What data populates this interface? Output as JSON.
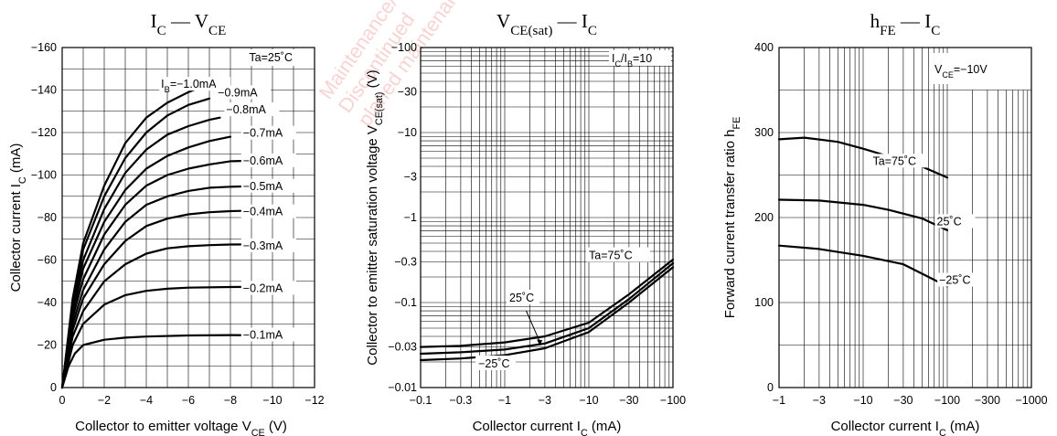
{
  "watermark": {
    "lines": [
      "Maintenance/",
      "Discontinued",
      "planed maintenance"
    ],
    "color": "#e06060"
  },
  "chart_data": [
    {
      "type": "line",
      "title": "I_C — V_CE",
      "title_html": [
        "I",
        "C",
        " — V",
        "CE"
      ],
      "xlabel": "Collector to emitter voltage  V_CE  (V)",
      "xlabel_parts": [
        "Collector to emitter voltage  V",
        "CE",
        "  (V)"
      ],
      "ylabel_parts": [
        "Collector current   I",
        "C",
        "  (mA)"
      ],
      "xlim": [
        0,
        -12
      ],
      "ylim": [
        0,
        -160
      ],
      "x_ticks": [
        "0",
        "−2",
        "−4",
        "−6",
        "−8",
        "−10",
        "−12"
      ],
      "y_ticks": [
        "0",
        "−20",
        "−40",
        "−60",
        "−80",
        "−100",
        "−120",
        "−140",
        "−160"
      ],
      "grid": true,
      "annotations": [
        "Ta=25˚C"
      ],
      "series": [
        {
          "name": "I_B=−1.0mA",
          "label": "I",
          "label_sub": "B",
          "label_rest": "=−1.0mA",
          "points": [
            [
              0,
              0
            ],
            [
              -0.5,
              -42
            ],
            [
              -1,
              -68
            ],
            [
              -2,
              -95
            ],
            [
              -3,
              -115
            ],
            [
              -4,
              -127
            ],
            [
              -5,
              -134
            ],
            [
              -6,
              -139
            ],
            [
              -6.5,
              -141
            ]
          ]
        },
        {
          "name": "−0.9mA",
          "label": "−0.9mA",
          "points": [
            [
              0,
              0
            ],
            [
              -0.5,
              -40
            ],
            [
              -1,
              -65
            ],
            [
              -2,
              -90
            ],
            [
              -3,
              -108
            ],
            [
              -4,
              -120
            ],
            [
              -5,
              -128
            ],
            [
              -6,
              -133
            ],
            [
              -7,
              -136
            ]
          ]
        },
        {
          "name": "−0.8mA",
          "label": "−0.8mA",
          "points": [
            [
              0,
              0
            ],
            [
              -0.5,
              -38
            ],
            [
              -1,
              -60
            ],
            [
              -2,
              -84
            ],
            [
              -3,
              -101
            ],
            [
              -4,
              -112
            ],
            [
              -5,
              -119
            ],
            [
              -6,
              -123
            ],
            [
              -7,
              -126
            ],
            [
              -7.5,
              -127
            ]
          ]
        },
        {
          "name": "−0.7mA",
          "label": "−0.7mA",
          "points": [
            [
              0,
              0
            ],
            [
              -0.5,
              -35
            ],
            [
              -1,
              -56
            ],
            [
              -2,
              -78
            ],
            [
              -3,
              -93
            ],
            [
              -4,
              -103
            ],
            [
              -5,
              -109
            ],
            [
              -6,
              -113
            ],
            [
              -7,
              -116
            ],
            [
              -8,
              -118
            ]
          ]
        },
        {
          "name": "−0.6mA",
          "label": "−0.6mA",
          "points": [
            [
              0,
              0
            ],
            [
              -0.5,
              -33
            ],
            [
              -1,
              -51
            ],
            [
              -2,
              -72
            ],
            [
              -3,
              -86
            ],
            [
              -4,
              -95
            ],
            [
              -5,
              -100
            ],
            [
              -6,
              -103
            ],
            [
              -7,
              -105
            ],
            [
              -8,
              -106.5
            ],
            [
              -10,
              -107
            ]
          ]
        },
        {
          "name": "−0.5mA",
          "label": "−0.5mA",
          "points": [
            [
              0,
              0
            ],
            [
              -0.5,
              -30
            ],
            [
              -1,
              -46
            ],
            [
              -2,
              -65
            ],
            [
              -3,
              -78
            ],
            [
              -4,
              -86
            ],
            [
              -5,
              -90
            ],
            [
              -6,
              -92.5
            ],
            [
              -7,
              -94
            ],
            [
              -8,
              -94.5
            ],
            [
              -10,
              -95
            ]
          ]
        },
        {
          "name": "−0.4mA",
          "label": "−0.4mA",
          "points": [
            [
              0,
              0
            ],
            [
              -0.5,
              -27
            ],
            [
              -1,
              -42
            ],
            [
              -2,
              -58
            ],
            [
              -3,
              -69
            ],
            [
              -4,
              -76
            ],
            [
              -5,
              -79.5
            ],
            [
              -6,
              -81.5
            ],
            [
              -7,
              -82.5
            ],
            [
              -8,
              -83
            ],
            [
              -10,
              -83.5
            ]
          ]
        },
        {
          "name": "−0.3mA",
          "label": "−0.3mA",
          "points": [
            [
              0,
              0
            ],
            [
              -0.5,
              -24
            ],
            [
              -1,
              -36
            ],
            [
              -2,
              -50
            ],
            [
              -3,
              -58
            ],
            [
              -4,
              -63
            ],
            [
              -5,
              -65.5
            ],
            [
              -6,
              -66.5
            ],
            [
              -7,
              -67
            ],
            [
              -8,
              -67.3
            ],
            [
              -10,
              -67.5
            ]
          ]
        },
        {
          "name": "−0.2mA",
          "label": "−0.2mA",
          "points": [
            [
              0,
              0
            ],
            [
              -0.5,
              -20
            ],
            [
              -1,
              -30
            ],
            [
              -2,
              -39
            ],
            [
              -3,
              -43.5
            ],
            [
              -4,
              -45.5
            ],
            [
              -5,
              -46.5
            ],
            [
              -6,
              -47
            ],
            [
              -8,
              -47.3
            ],
            [
              -10,
              -47.5
            ]
          ]
        },
        {
          "name": "−0.1mA",
          "label": "−0.1mA",
          "points": [
            [
              0,
              0
            ],
            [
              -0.3,
              -10
            ],
            [
              -0.6,
              -16
            ],
            [
              -1,
              -20
            ],
            [
              -2,
              -22.5
            ],
            [
              -3,
              -23.5
            ],
            [
              -4,
              -24
            ],
            [
              -6,
              -24.5
            ],
            [
              -8,
              -24.7
            ],
            [
              -10,
              -24.5
            ]
          ]
        }
      ]
    },
    {
      "type": "line",
      "title": "V_CE(sat) — I_C",
      "title_html": [
        "V",
        "CE(sat)",
        " — I",
        "C"
      ],
      "xlabel": "Collector current   I_C   (mA)",
      "xlabel_parts": [
        "Collector current   I",
        "C",
        "   (mA)"
      ],
      "ylabel_parts": [
        "Collector to emitter saturation voltage   V",
        "CE(sat)",
        "   (V)"
      ],
      "x_scale": "log",
      "y_scale": "log",
      "xlim": [
        -0.1,
        -100
      ],
      "ylim": [
        -0.01,
        -100
      ],
      "x_ticks": [
        "−0.1",
        "−0.3",
        "−1",
        "−3",
        "−10",
        "−30",
        "−100"
      ],
      "y_ticks": [
        "−0.01",
        "−0.03",
        "−0.1",
        "−0.3",
        "−1",
        "−3",
        "−10",
        "−30",
        "−100"
      ],
      "grid": true,
      "annotations": [
        "I_C/I_B=10"
      ],
      "annotation_parts": [
        "I",
        "C",
        "/I",
        "B",
        "=10"
      ],
      "series": [
        {
          "name": "Ta=75˚C",
          "label": "Ta=75˚C",
          "points": [
            [
              -0.1,
              -0.021
            ],
            [
              -0.3,
              -0.022
            ],
            [
              -1,
              -0.024
            ],
            [
              -3,
              -0.029
            ],
            [
              -10,
              -0.045
            ],
            [
              -30,
              -0.1
            ],
            [
              -100,
              -0.26
            ]
          ]
        },
        {
          "name": "25˚C",
          "label": "25˚C",
          "points": [
            [
              -0.1,
              -0.025
            ],
            [
              -0.3,
              -0.026
            ],
            [
              -1,
              -0.028
            ],
            [
              -3,
              -0.033
            ],
            [
              -10,
              -0.05
            ],
            [
              -30,
              -0.11
            ],
            [
              -100,
              -0.29
            ]
          ]
        },
        {
          "name": "−25˚C",
          "label": "−25˚C",
          "points": [
            [
              -0.1,
              -0.03
            ],
            [
              -0.3,
              -0.031
            ],
            [
              -1,
              -0.034
            ],
            [
              -3,
              -0.04
            ],
            [
              -10,
              -0.058
            ],
            [
              -30,
              -0.125
            ],
            [
              -100,
              -0.32
            ]
          ]
        }
      ]
    },
    {
      "type": "line",
      "title": "h_FE — I_C",
      "title_html": [
        "h",
        "FE",
        " — I",
        "C"
      ],
      "xlabel": "Collector current   I_C   (mA)",
      "xlabel_parts": [
        "Collector current   I",
        "C",
        "   (mA)"
      ],
      "ylabel_parts": [
        "Forward current transfer ratio   h",
        "FE"
      ],
      "x_scale": "log",
      "xlim": [
        -1,
        -1000
      ],
      "ylim": [
        0,
        400
      ],
      "x_ticks": [
        "−1",
        "−3",
        "−10",
        "−30",
        "−100",
        "−300",
        "−1000"
      ],
      "y_ticks": [
        "0",
        "100",
        "200",
        "300",
        "400"
      ],
      "grid": true,
      "annotations": [
        "V_CE=−10V"
      ],
      "annotation_parts": [
        "V",
        "CE",
        "=−10V"
      ],
      "series": [
        {
          "name": "Ta=75˚C",
          "label": "Ta=75˚C",
          "points": [
            [
              -1,
              292
            ],
            [
              -2,
              294
            ],
            [
              -5,
              289
            ],
            [
              -10,
              281
            ],
            [
              -20,
              272
            ],
            [
              -50,
              260
            ],
            [
              -100,
              247
            ]
          ]
        },
        {
          "name": "25˚C",
          "label": "25˚C",
          "points": [
            [
              -1,
              221
            ],
            [
              -3,
              220
            ],
            [
              -10,
              215
            ],
            [
              -20,
              209
            ],
            [
              -50,
              199
            ],
            [
              -100,
              185
            ]
          ]
        },
        {
          "name": "−25˚C",
          "label": "−25˚C",
          "points": [
            [
              -1,
              167
            ],
            [
              -3,
              163
            ],
            [
              -10,
              155
            ],
            [
              -30,
              145
            ],
            [
              -100,
              119
            ]
          ]
        }
      ]
    }
  ]
}
